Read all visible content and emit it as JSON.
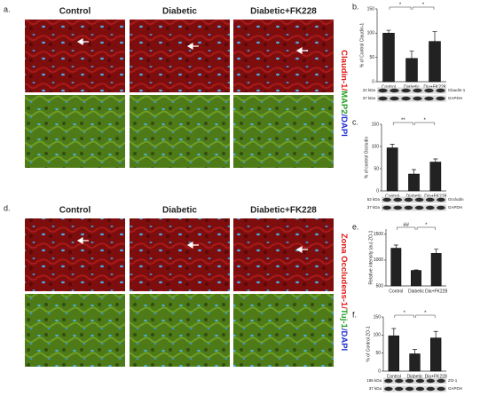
{
  "figure_panels": [
    {
      "label": "a.",
      "columns": [
        "Control",
        "Diabetic",
        "Diabetic+FK228"
      ],
      "stain": [
        {
          "text": "Claudin-1",
          "color": "#e01818"
        },
        {
          "text": "/",
          "color": "#e01818"
        },
        {
          "text": "MAP2",
          "color": "#28a028"
        },
        {
          "text": "/DAPI",
          "color": "#2030d0"
        }
      ]
    },
    {
      "label": "d.",
      "columns": [
        "Control",
        "Diabetic",
        "Diabetic+FK228"
      ],
      "stain": [
        {
          "text": "Zona Occludens-1",
          "color": "#e01818"
        },
        {
          "text": "/",
          "color": "#e01818"
        },
        {
          "text": "Tuj-1",
          "color": "#28a028"
        },
        {
          "text": "/DAPI",
          "color": "#2030d0"
        }
      ]
    }
  ],
  "chart_data": [
    {
      "type": "bar",
      "panel_label": "b.",
      "ylabel": "% of Control Claudin-1",
      "categories": [
        "Control",
        "Diabetic",
        "Dia+FK228"
      ],
      "values": [
        100,
        48,
        83
      ],
      "errors": [
        6,
        15,
        20
      ],
      "color": "#222222",
      "ylim": [
        0,
        150
      ],
      "yticks": [
        0,
        50,
        100,
        150
      ],
      "significance": [
        "*",
        "*"
      ],
      "blot": [
        {
          "size": "22 kDa",
          "protein": "Claudin-1"
        },
        {
          "size": "37 kDa",
          "protein": "GAPDH"
        }
      ]
    },
    {
      "type": "bar",
      "panel_label": "c.",
      "ylabel": "% of control Occludin",
      "categories": [
        "Control",
        "Diabetic",
        "Dia+FK228"
      ],
      "values": [
        97,
        38,
        65
      ],
      "errors": [
        8,
        10,
        7
      ],
      "color": "#222222",
      "ylim": [
        0,
        150
      ],
      "yticks": [
        0,
        50,
        100,
        150
      ],
      "significance": [
        "**",
        "*"
      ],
      "blot": [
        {
          "size": "52 kDa",
          "protein": "Occludin"
        },
        {
          "size": "37 kDa",
          "protein": "GAPDH"
        }
      ]
    },
    {
      "type": "bar",
      "panel_label": "e.",
      "ylabel": "Relative intensity (au) ZO-1",
      "categories": [
        "Control",
        "Diabetic",
        "Dia+FK228"
      ],
      "values": [
        1230,
        800,
        1130
      ],
      "errors": [
        60,
        10,
        80
      ],
      "color": "#222222",
      "ylim": [
        500,
        1600
      ],
      "yticks": [
        500,
        1000,
        1500
      ],
      "significance": [
        "##",
        "*"
      ]
    },
    {
      "type": "bar",
      "panel_label": "f.",
      "ylabel": "% of Control ZO-1",
      "categories": [
        "Control",
        "Diabetic",
        "Dia+FK228"
      ],
      "values": [
        98,
        48,
        92
      ],
      "errors": [
        20,
        12,
        18
      ],
      "color": "#222222",
      "ylim": [
        0,
        150
      ],
      "yticks": [
        0,
        50,
        100,
        150
      ],
      "significance": [
        "*",
        "*"
      ],
      "blot": [
        {
          "size": "195 kDa",
          "protein": "ZO-1"
        },
        {
          "size": "37 kDa",
          "protein": "GAPDH"
        }
      ]
    }
  ]
}
